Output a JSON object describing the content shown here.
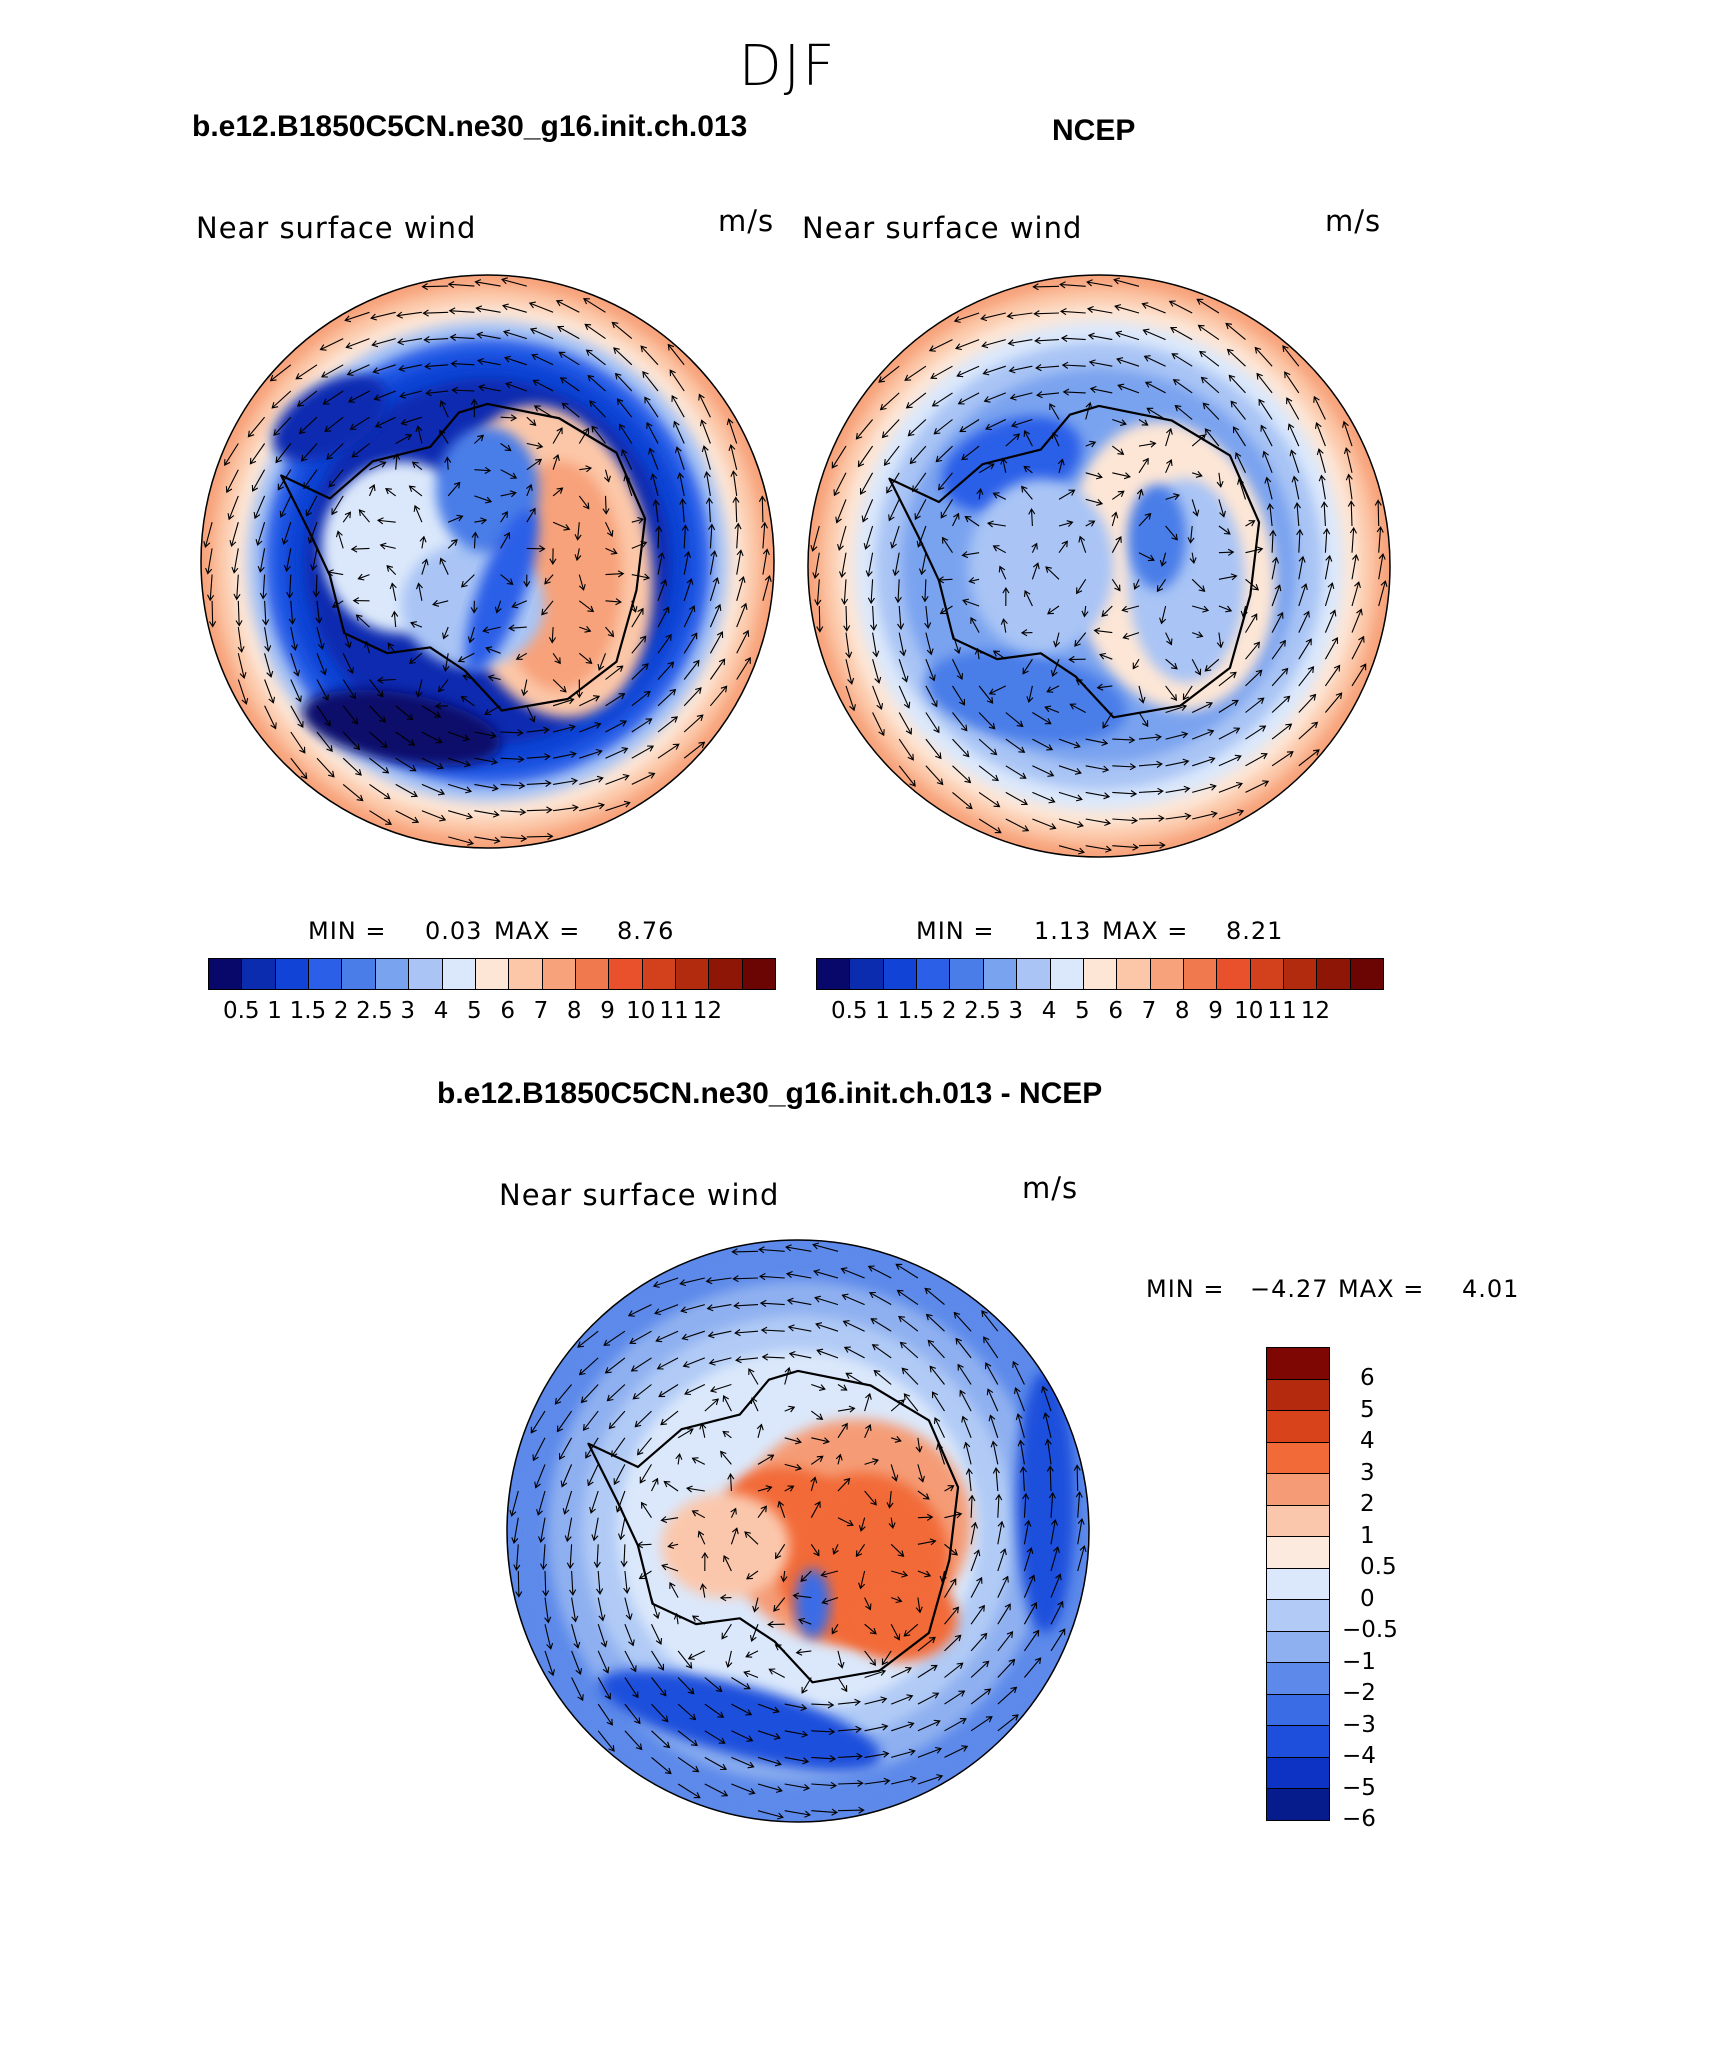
{
  "season": "DJF",
  "panels": {
    "model": {
      "title": "b.e12.B1850C5CN.ne30_g16.init.ch.013",
      "label": "Near surface wind",
      "units": "m/s",
      "min_text": "MIN =",
      "min": "0.03",
      "max_text": "MAX =",
      "max": "8.76"
    },
    "obs": {
      "title": "NCEP",
      "label": "Near surface wind",
      "units": "m/s",
      "min_text": "MIN =",
      "min": "1.13",
      "max_text": "MAX =",
      "max": "8.21"
    },
    "diff": {
      "title": "b.e12.B1850C5CN.ne30_g16.init.ch.013 - NCEP",
      "label": "Near surface wind",
      "units": "m/s",
      "min_text": "MIN =",
      "min": "−4.27",
      "max_text": "MAX =",
      "max": "4.01"
    }
  },
  "colorbar_abs": {
    "colors": [
      "#08086b",
      "#0c2cb0",
      "#1144d6",
      "#2b5fe8",
      "#4a7de8",
      "#7aa3ef",
      "#a9c4f5",
      "#dbe8fb",
      "#fde6d6",
      "#fcc7a8",
      "#f7a27a",
      "#f07a4e",
      "#e8512b",
      "#d2401c",
      "#b32b0e",
      "#8e1607",
      "#6b0503"
    ],
    "ticks": [
      "0.5",
      "1",
      "1.5",
      "2",
      "2.5",
      "3",
      "4",
      "5",
      "6",
      "7",
      "8",
      "9",
      "10",
      "11",
      "12"
    ]
  },
  "colorbar_diff": {
    "colors": [
      "#7e0704",
      "#b32a0e",
      "#d9431b",
      "#f26a37",
      "#f59c76",
      "#fbc7ac",
      "#fdeade",
      "#dbe8fb",
      "#b1cbf6",
      "#8fb0f0",
      "#5d8aea",
      "#3a6ce6",
      "#1d4fdc",
      "#0c33c4",
      "#061c8c"
    ],
    "ticks": [
      "6",
      "5",
      "4",
      "3",
      "2",
      "1",
      "0.5",
      "0",
      "−0.5",
      "−1",
      "−2",
      "−3",
      "−4",
      "−5",
      "−6"
    ]
  }
}
